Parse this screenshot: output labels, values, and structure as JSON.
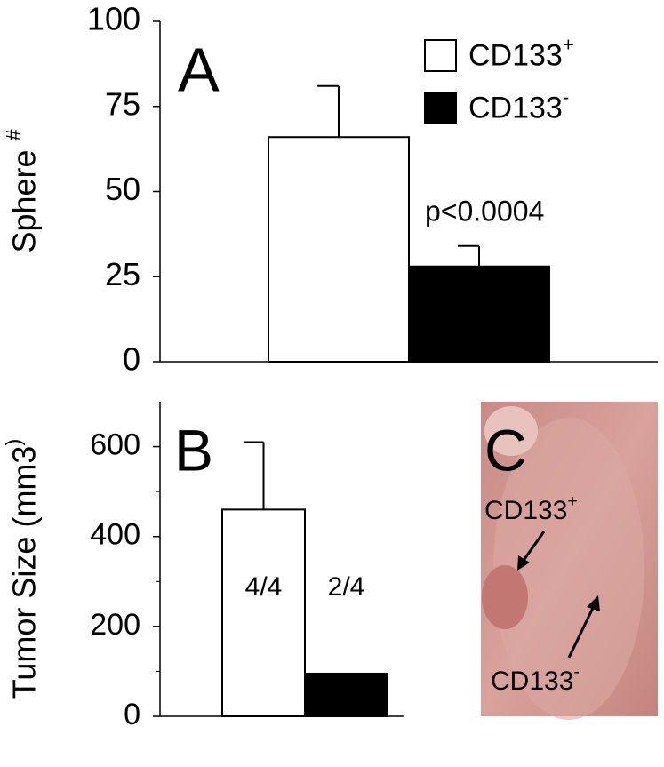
{
  "chart_data": [
    {
      "type": "bar",
      "panel_label": "A",
      "y_label": "Sphere #",
      "annotation": "p<0.0004",
      "categories": [
        null
      ],
      "series": [
        {
          "name": "CD133+",
          "color": "#ffffff",
          "values": [
            66
          ],
          "errors": [
            15
          ]
        },
        {
          "name": "CD133-",
          "color": "#000000",
          "values": [
            28
          ],
          "errors": [
            6
          ]
        }
      ],
      "ylim": [
        0,
        100
      ],
      "yticks": [
        0,
        25,
        50,
        75,
        100
      ],
      "legend": "top-right"
    },
    {
      "type": "bar",
      "panel_label": "B",
      "y_label": "Tumor Size (mm3)",
      "categories": [
        null
      ],
      "series": [
        {
          "color": "#ffffff",
          "values": [
            460
          ],
          "errors": [
            150
          ],
          "label": "4/4"
        },
        {
          "color": "#000000",
          "values": [
            95
          ],
          "label": "2/4"
        }
      ],
      "ylim": [
        0,
        700
      ],
      "yticks": [
        0,
        200,
        400,
        600
      ],
      "minor_yticks": [
        100,
        300,
        500
      ]
    }
  ],
  "photo": {
    "panel_label": "C",
    "annotations": [
      "CD133+",
      "CD133-"
    ]
  }
}
